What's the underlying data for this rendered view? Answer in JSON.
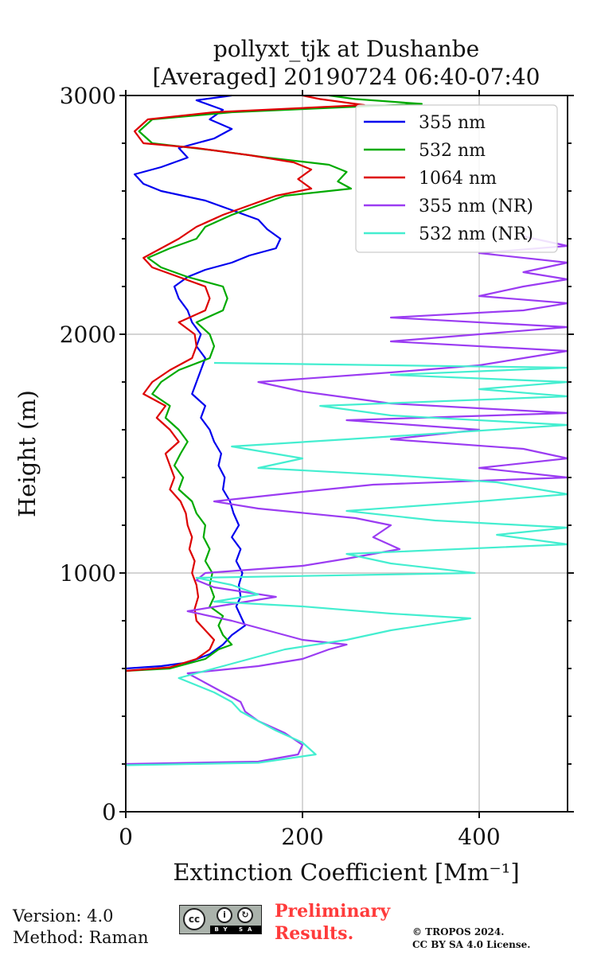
{
  "chart_data": {
    "type": "line",
    "title": "pollyxt_tjk at Dushanbe",
    "subtitle": "[Averaged] 20190724 06:40-07:40",
    "xlabel": "Extinction Coefficient [Mm⁻¹]",
    "ylabel": "Height (m)",
    "xlim": [
      0,
      500
    ],
    "ylim": [
      0,
      3000
    ],
    "xticks": [
      "0",
      "200",
      "400"
    ],
    "yticks": [
      "0",
      "1000",
      "2000",
      "3000"
    ],
    "grid": true,
    "legend_position": "top-right",
    "series": [
      {
        "name": "355 nm",
        "color": "#0000ee",
        "points": [
          [
            0,
            600
          ],
          [
            40,
            610
          ],
          [
            70,
            625
          ],
          [
            95,
            660
          ],
          [
            110,
            700
          ],
          [
            120,
            740
          ],
          [
            135,
            780
          ],
          [
            130,
            820
          ],
          [
            125,
            860
          ],
          [
            130,
            900
          ],
          [
            128,
            950
          ],
          [
            132,
            1000
          ],
          [
            125,
            1050
          ],
          [
            130,
            1100
          ],
          [
            120,
            1150
          ],
          [
            128,
            1200
          ],
          [
            122,
            1250
          ],
          [
            118,
            1300
          ],
          [
            110,
            1350
          ],
          [
            112,
            1400
          ],
          [
            105,
            1450
          ],
          [
            108,
            1500
          ],
          [
            100,
            1550
          ],
          [
            95,
            1600
          ],
          [
            85,
            1650
          ],
          [
            90,
            1700
          ],
          [
            75,
            1750
          ],
          [
            80,
            1800
          ],
          [
            85,
            1850
          ],
          [
            90,
            1900
          ],
          [
            80,
            1950
          ],
          [
            85,
            2000
          ],
          [
            75,
            2050
          ],
          [
            70,
            2100
          ],
          [
            60,
            2150
          ],
          [
            55,
            2200
          ],
          [
            70,
            2240
          ],
          [
            90,
            2270
          ],
          [
            120,
            2300
          ],
          [
            140,
            2330
          ],
          [
            170,
            2360
          ],
          [
            175,
            2400
          ],
          [
            160,
            2440
          ],
          [
            150,
            2480
          ],
          [
            120,
            2520
          ],
          [
            90,
            2560
          ],
          [
            40,
            2600
          ],
          [
            20,
            2630
          ],
          [
            10,
            2670
          ],
          [
            40,
            2700
          ],
          [
            70,
            2740
          ],
          [
            60,
            2780
          ],
          [
            100,
            2820
          ],
          [
            120,
            2860
          ],
          [
            95,
            2900
          ],
          [
            110,
            2940
          ],
          [
            80,
            2980
          ],
          [
            120,
            3000
          ]
        ]
      },
      {
        "name": "532 nm",
        "color": "#00aa00",
        "points": [
          [
            0,
            590
          ],
          [
            50,
            600
          ],
          [
            90,
            640
          ],
          [
            105,
            680
          ],
          [
            120,
            700
          ],
          [
            110,
            740
          ],
          [
            105,
            780
          ],
          [
            110,
            820
          ],
          [
            95,
            860
          ],
          [
            100,
            900
          ],
          [
            95,
            950
          ],
          [
            98,
            1000
          ],
          [
            90,
            1050
          ],
          [
            95,
            1100
          ],
          [
            88,
            1150
          ],
          [
            90,
            1200
          ],
          [
            80,
            1250
          ],
          [
            75,
            1300
          ],
          [
            60,
            1350
          ],
          [
            65,
            1400
          ],
          [
            55,
            1450
          ],
          [
            62,
            1500
          ],
          [
            70,
            1550
          ],
          [
            60,
            1600
          ],
          [
            45,
            1650
          ],
          [
            50,
            1700
          ],
          [
            30,
            1750
          ],
          [
            40,
            1800
          ],
          [
            60,
            1850
          ],
          [
            95,
            1900
          ],
          [
            100,
            1950
          ],
          [
            95,
            2000
          ],
          [
            80,
            2050
          ],
          [
            110,
            2100
          ],
          [
            115,
            2150
          ],
          [
            110,
            2200
          ],
          [
            70,
            2240
          ],
          [
            40,
            2280
          ],
          [
            25,
            2320
          ],
          [
            50,
            2360
          ],
          [
            80,
            2400
          ],
          [
            90,
            2450
          ],
          [
            120,
            2500
          ],
          [
            150,
            2540
          ],
          [
            180,
            2580
          ],
          [
            255,
            2610
          ],
          [
            240,
            2640
          ],
          [
            250,
            2680
          ],
          [
            230,
            2710
          ],
          [
            160,
            2740
          ],
          [
            100,
            2770
          ],
          [
            30,
            2800
          ],
          [
            15,
            2850
          ],
          [
            30,
            2900
          ],
          [
            120,
            2930
          ],
          [
            335,
            2965
          ],
          [
            260,
            2985
          ],
          [
            230,
            3000
          ]
        ]
      },
      {
        "name": "1064 nm",
        "color": "#dd0000",
        "points": [
          [
            0,
            590
          ],
          [
            50,
            605
          ],
          [
            80,
            640
          ],
          [
            95,
            680
          ],
          [
            100,
            720
          ],
          [
            90,
            760
          ],
          [
            80,
            800
          ],
          [
            78,
            850
          ],
          [
            82,
            900
          ],
          [
            80,
            950
          ],
          [
            75,
            1000
          ],
          [
            78,
            1050
          ],
          [
            72,
            1100
          ],
          [
            75,
            1150
          ],
          [
            70,
            1200
          ],
          [
            68,
            1250
          ],
          [
            62,
            1300
          ],
          [
            50,
            1350
          ],
          [
            55,
            1400
          ],
          [
            50,
            1450
          ],
          [
            45,
            1500
          ],
          [
            60,
            1550
          ],
          [
            50,
            1600
          ],
          [
            35,
            1650
          ],
          [
            45,
            1700
          ],
          [
            20,
            1750
          ],
          [
            30,
            1800
          ],
          [
            50,
            1850
          ],
          [
            75,
            1900
          ],
          [
            80,
            1950
          ],
          [
            78,
            2000
          ],
          [
            60,
            2050
          ],
          [
            90,
            2100
          ],
          [
            95,
            2150
          ],
          [
            90,
            2200
          ],
          [
            60,
            2240
          ],
          [
            30,
            2280
          ],
          [
            20,
            2320
          ],
          [
            40,
            2360
          ],
          [
            60,
            2400
          ],
          [
            80,
            2450
          ],
          [
            110,
            2500
          ],
          [
            140,
            2540
          ],
          [
            170,
            2580
          ],
          [
            210,
            2610
          ],
          [
            195,
            2650
          ],
          [
            210,
            2690
          ],
          [
            190,
            2720
          ],
          [
            140,
            2750
          ],
          [
            80,
            2780
          ],
          [
            20,
            2800
          ],
          [
            10,
            2850
          ],
          [
            25,
            2900
          ],
          [
            100,
            2930
          ],
          [
            270,
            2960
          ],
          [
            220,
            2985
          ],
          [
            200,
            3000
          ]
        ]
      },
      {
        "name": "355 nm (NR)",
        "color": "#9b3cf2",
        "points": [
          [
            0,
            200
          ],
          [
            150,
            210
          ],
          [
            195,
            240
          ],
          [
            200,
            280
          ],
          [
            180,
            330
          ],
          [
            150,
            380
          ],
          [
            135,
            420
          ],
          [
            130,
            460
          ],
          [
            110,
            500
          ],
          [
            90,
            540
          ],
          [
            70,
            580
          ],
          [
            150,
            610
          ],
          [
            200,
            640
          ],
          [
            230,
            680
          ],
          [
            250,
            700
          ],
          [
            200,
            720
          ],
          [
            160,
            760
          ],
          [
            120,
            800
          ],
          [
            70,
            840
          ],
          [
            120,
            870
          ],
          [
            170,
            900
          ],
          [
            100,
            940
          ],
          [
            80,
            970
          ],
          [
            90,
            1000
          ],
          [
            200,
            1030
          ],
          [
            250,
            1060
          ],
          [
            310,
            1100
          ],
          [
            280,
            1150
          ],
          [
            300,
            1200
          ],
          [
            260,
            1230
          ],
          [
            150,
            1270
          ],
          [
            100,
            1300
          ],
          [
            200,
            1340
          ],
          [
            280,
            1370
          ],
          [
            500,
            1400
          ],
          [
            400,
            1440
          ],
          [
            500,
            1480
          ],
          [
            450,
            1520
          ],
          [
            300,
            1560
          ],
          [
            400,
            1600
          ],
          [
            250,
            1640
          ],
          [
            500,
            1670
          ],
          [
            300,
            1710
          ],
          [
            200,
            1760
          ],
          [
            150,
            1800
          ],
          [
            300,
            1840
          ],
          [
            400,
            1870
          ],
          [
            450,
            1900
          ],
          [
            500,
            1930
          ],
          [
            300,
            1970
          ],
          [
            400,
            2000
          ],
          [
            500,
            2030
          ],
          [
            300,
            2070
          ],
          [
            450,
            2100
          ],
          [
            500,
            2130
          ],
          [
            400,
            2160
          ],
          [
            450,
            2200
          ],
          [
            500,
            2230
          ],
          [
            450,
            2260
          ],
          [
            500,
            2300
          ],
          [
            400,
            2340
          ],
          [
            500,
            2370
          ],
          [
            450,
            2410
          ]
        ]
      },
      {
        "name": "532 nm (NR)",
        "color": "#44eed0",
        "points": [
          [
            0,
            195
          ],
          [
            150,
            205
          ],
          [
            215,
            240
          ],
          [
            200,
            290
          ],
          [
            170,
            340
          ],
          [
            150,
            380
          ],
          [
            130,
            420
          ],
          [
            120,
            460
          ],
          [
            100,
            500
          ],
          [
            80,
            530
          ],
          [
            60,
            560
          ],
          [
            100,
            600
          ],
          [
            140,
            640
          ],
          [
            180,
            680
          ],
          [
            250,
            720
          ],
          [
            300,
            760
          ],
          [
            390,
            810
          ],
          [
            300,
            830
          ],
          [
            200,
            860
          ],
          [
            100,
            880
          ],
          [
            150,
            910
          ],
          [
            120,
            950
          ],
          [
            80,
            980
          ],
          [
            395,
            1000
          ],
          [
            300,
            1040
          ],
          [
            250,
            1080
          ],
          [
            500,
            1120
          ],
          [
            420,
            1160
          ],
          [
            500,
            1190
          ],
          [
            350,
            1220
          ],
          [
            250,
            1260
          ],
          [
            400,
            1300
          ],
          [
            500,
            1330
          ],
          [
            420,
            1380
          ],
          [
            300,
            1410
          ],
          [
            150,
            1440
          ],
          [
            200,
            1480
          ],
          [
            120,
            1530
          ],
          [
            250,
            1560
          ],
          [
            500,
            1620
          ],
          [
            300,
            1660
          ],
          [
            220,
            1700
          ],
          [
            500,
            1740
          ],
          [
            400,
            1770
          ],
          [
            500,
            1800
          ],
          [
            300,
            1830
          ],
          [
            500,
            1860
          ],
          [
            100,
            1880
          ]
        ]
      }
    ]
  },
  "footer": {
    "version": "Version: 4.0",
    "method": "Method: Raman",
    "prelim_line1": "Preliminary",
    "prelim_line2": "Results.",
    "copyright_line1": "© TROPOS 2024.",
    "copyright_line2": "CC BY SA 4.0 License.",
    "cc_badge": {
      "cc": "cc",
      "by": "BY",
      "sa": "SA"
    }
  }
}
